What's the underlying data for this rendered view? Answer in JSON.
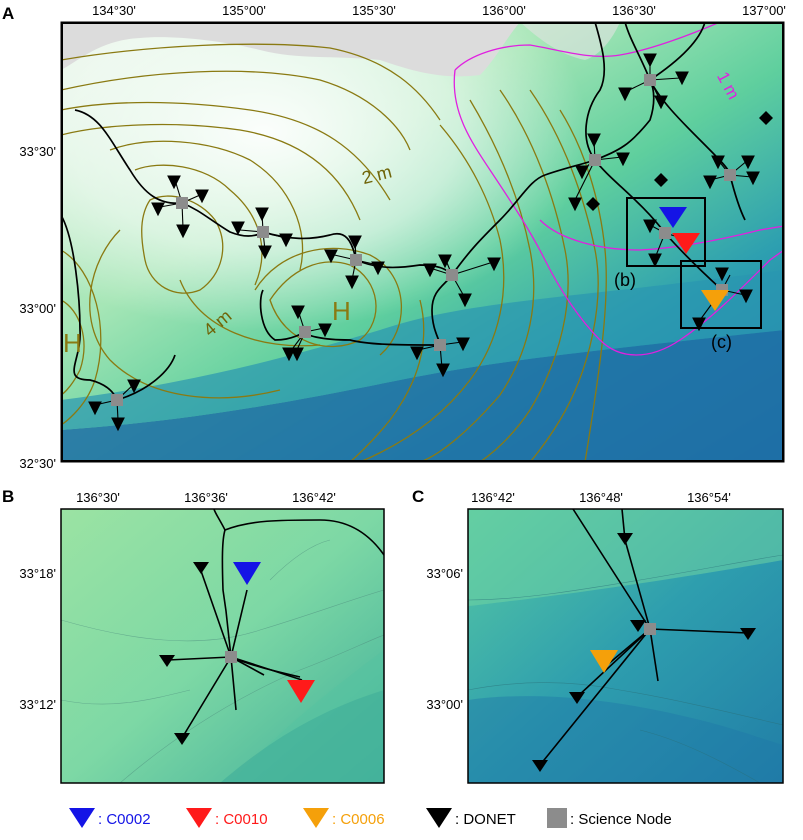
{
  "panel_a": {
    "label": "A",
    "x_ticks": [
      "134°30'",
      "135°00'",
      "135°30'",
      "136°00'",
      "136°30'",
      "137°00'"
    ],
    "y_ticks": [
      "33°30'",
      "33°00'",
      "32°30'"
    ],
    "contour_labels": {
      "one_m": "1 m",
      "two_m": "2 m",
      "four_m": "4 m"
    },
    "high_markers": [
      "H",
      "H"
    ],
    "inset_labels": [
      "(b)",
      "(c)"
    ]
  },
  "panel_b": {
    "label": "B",
    "x_ticks": [
      "136°30'",
      "136°36'",
      "136°42'"
    ],
    "y_ticks": [
      "33°18'",
      "33°12'"
    ]
  },
  "panel_c": {
    "label": "C",
    "x_ticks": [
      "136°42'",
      "136°48'",
      "136°54'"
    ],
    "y_ticks": [
      "33°06'",
      "33°00'"
    ]
  },
  "legend": [
    {
      "marker": "triangle",
      "color": "#1414e6",
      "text": ": C0002",
      "text_color": "#1414e6"
    },
    {
      "marker": "triangle",
      "color": "#ff1a1a",
      "text": ": C0010",
      "text_color": "#ff1a1a"
    },
    {
      "marker": "triangle",
      "color": "#f5a00a",
      "text": ": C0006",
      "text_color": "#f5a00a"
    },
    {
      "marker": "triangle",
      "color": "#000000",
      "text": ": DONET",
      "text_color": "#000000"
    },
    {
      "marker": "square",
      "color": "#8c8c8c",
      "text": ": Science Node",
      "text_color": "#000000"
    }
  ],
  "colors": {
    "contour": "#8a7a12",
    "contour_label": "#6f6408",
    "one_m_contour": "#e020e0",
    "c0002": "#1414e6",
    "c0010": "#ff1a1a",
    "c0006": "#f5a00a",
    "node": "#8c8c8c"
  }
}
